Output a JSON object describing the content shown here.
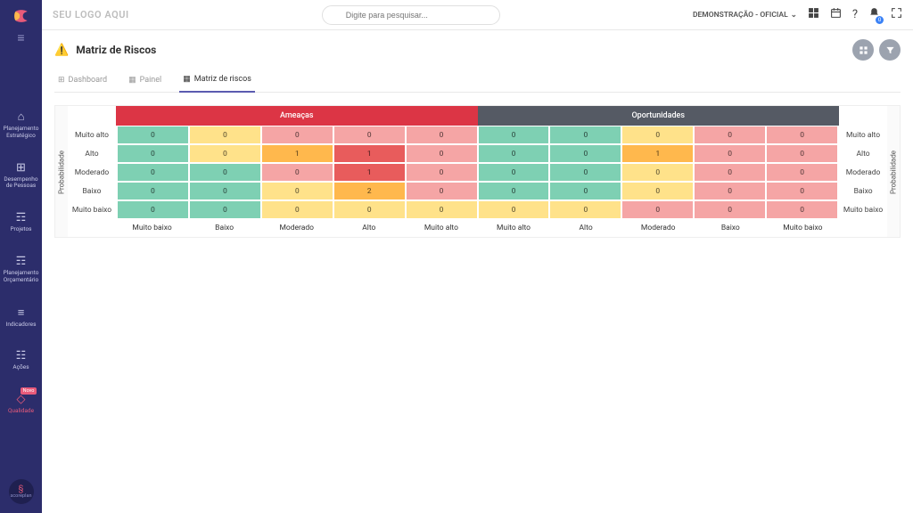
{
  "brand": "SEU LOGO AQUI",
  "search": {
    "placeholder": "Digite para pesquisar..."
  },
  "topbar": {
    "demo_label": "DEMONSTRAÇÃO - OFICIAL",
    "notif_count": "0"
  },
  "sidebar": {
    "items": [
      {
        "label": "Planejamento\nEstratégico",
        "icon": "⌂"
      },
      {
        "label": "Desempenho\nde Pessoas",
        "icon": "⊞"
      },
      {
        "label": "Projetos",
        "icon": "☶"
      },
      {
        "label": "Planejamento\nOrçamentário",
        "icon": "☶"
      },
      {
        "label": "Indicadores",
        "icon": "≡"
      },
      {
        "label": "Ações",
        "icon": "☷"
      },
      {
        "label": "Qualidade",
        "icon": "◇",
        "badge": "Novo",
        "active": true
      }
    ],
    "bottom": "scoreplan"
  },
  "page": {
    "title": "Matriz de Riscos",
    "tabs": [
      {
        "label": "Dashboard",
        "icon": "⊞"
      },
      {
        "label": "Painel",
        "icon": "▦"
      },
      {
        "label": "Matriz de riscos",
        "icon": "▦",
        "active": true
      }
    ]
  },
  "matrix": {
    "threats_label": "Ameaças",
    "opportunities_label": "Oportunidades",
    "y_axis_label": "Probabilidade",
    "probability_levels": [
      "Muito alto",
      "Alto",
      "Moderado",
      "Baixo",
      "Muito baixo"
    ],
    "impact_levels_threats": [
      "Muito baixo",
      "Baixo",
      "Moderado",
      "Alto",
      "Muito alto"
    ],
    "impact_levels_opps": [
      "Muito alto",
      "Alto",
      "Moderado",
      "Baixo",
      "Muito baixo"
    ],
    "colors": {
      "green": "#7ed0b3",
      "yellow": "#ffe28a",
      "orange": "#ffb84d",
      "lightred": "#f5a5a5",
      "red": "#e85c5c"
    },
    "threats": {
      "values": [
        [
          0,
          0,
          0,
          0,
          0
        ],
        [
          0,
          0,
          1,
          1,
          0
        ],
        [
          0,
          0,
          0,
          1,
          0
        ],
        [
          0,
          0,
          0,
          2,
          0
        ],
        [
          0,
          0,
          0,
          0,
          0
        ]
      ],
      "cell_colors": [
        [
          "green",
          "yellow",
          "lightred",
          "lightred",
          "lightred"
        ],
        [
          "green",
          "yellow",
          "orange",
          "red",
          "lightred"
        ],
        [
          "green",
          "green",
          "lightred",
          "red",
          "lightred"
        ],
        [
          "green",
          "green",
          "yellow",
          "orange",
          "lightred"
        ],
        [
          "green",
          "green",
          "yellow",
          "yellow",
          "yellow"
        ]
      ]
    },
    "opps": {
      "values": [
        [
          0,
          0,
          0,
          0,
          0
        ],
        [
          0,
          0,
          1,
          0,
          0
        ],
        [
          0,
          0,
          0,
          0,
          0
        ],
        [
          0,
          0,
          0,
          0,
          0
        ],
        [
          0,
          0,
          0,
          0,
          0
        ]
      ],
      "cell_colors": [
        [
          "green",
          "green",
          "yellow",
          "lightred",
          "lightred"
        ],
        [
          "green",
          "green",
          "orange",
          "lightred",
          "lightred"
        ],
        [
          "green",
          "green",
          "yellow",
          "lightred",
          "lightred"
        ],
        [
          "green",
          "green",
          "yellow",
          "lightred",
          "lightred"
        ],
        [
          "yellow",
          "yellow",
          "lightred",
          "lightred",
          "lightred"
        ]
      ]
    }
  }
}
